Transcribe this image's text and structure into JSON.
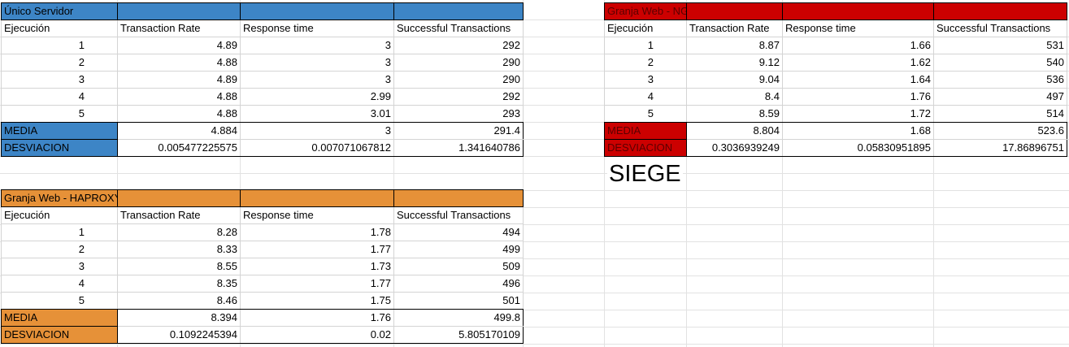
{
  "colors": {
    "blue": "#3d85c6",
    "red": "#cc0000",
    "orange": "#e69138",
    "gridline": "#e2e2e2"
  },
  "siege_label": "SIEGE",
  "tables": {
    "unico": {
      "title": "Único Servidor",
      "headers": [
        "Ejecución",
        "Transaction Rate",
        "Response time",
        "Successful Transactions"
      ],
      "rows": [
        [
          "1",
          "4.89",
          "3",
          "292"
        ],
        [
          "2",
          "4.88",
          "3",
          "290"
        ],
        [
          "3",
          "4.89",
          "3",
          "290"
        ],
        [
          "4",
          "4.88",
          "2.99",
          "292"
        ],
        [
          "5",
          "4.88",
          "3.01",
          "293"
        ]
      ],
      "media": [
        "MEDIA",
        "4.884",
        "3",
        "291.4"
      ],
      "desviacion": [
        "DESVIACION",
        "0.005477225575",
        "0.007071067812",
        "1.341640786"
      ]
    },
    "nginx": {
      "title": "Granja Web - NGINX",
      "headers": [
        "Ejecución",
        "Transaction Rate",
        "Response time",
        "Successful Transactions"
      ],
      "rows": [
        [
          "1",
          "8.87",
          "1.66",
          "531"
        ],
        [
          "2",
          "9.12",
          "1.62",
          "540"
        ],
        [
          "3",
          "9.04",
          "1.64",
          "536"
        ],
        [
          "4",
          "8.4",
          "1.76",
          "497"
        ],
        [
          "5",
          "8.59",
          "1.72",
          "514"
        ]
      ],
      "media": [
        "MEDIA",
        "8.804",
        "1.68",
        "523.6"
      ],
      "desviacion": [
        "DESVIACION",
        "0.3036939249",
        "0.05830951895",
        "17.86896751"
      ]
    },
    "haproxy": {
      "title": "Granja Web - HAPROXY",
      "headers": [
        "Ejecución",
        "Transaction Rate",
        "Response time",
        "Successful Transactions"
      ],
      "rows": [
        [
          "1",
          "8.28",
          "1.78",
          "494"
        ],
        [
          "2",
          "8.33",
          "1.77",
          "499"
        ],
        [
          "3",
          "8.55",
          "1.73",
          "509"
        ],
        [
          "4",
          "8.35",
          "1.77",
          "496"
        ],
        [
          "5",
          "8.46",
          "1.75",
          "501"
        ]
      ],
      "media": [
        "MEDIA",
        "8.394",
        "1.76",
        "499.8"
      ],
      "desviacion": [
        "DESVIACION",
        "0.1092245394",
        "0.02",
        "5.805170109"
      ]
    }
  }
}
